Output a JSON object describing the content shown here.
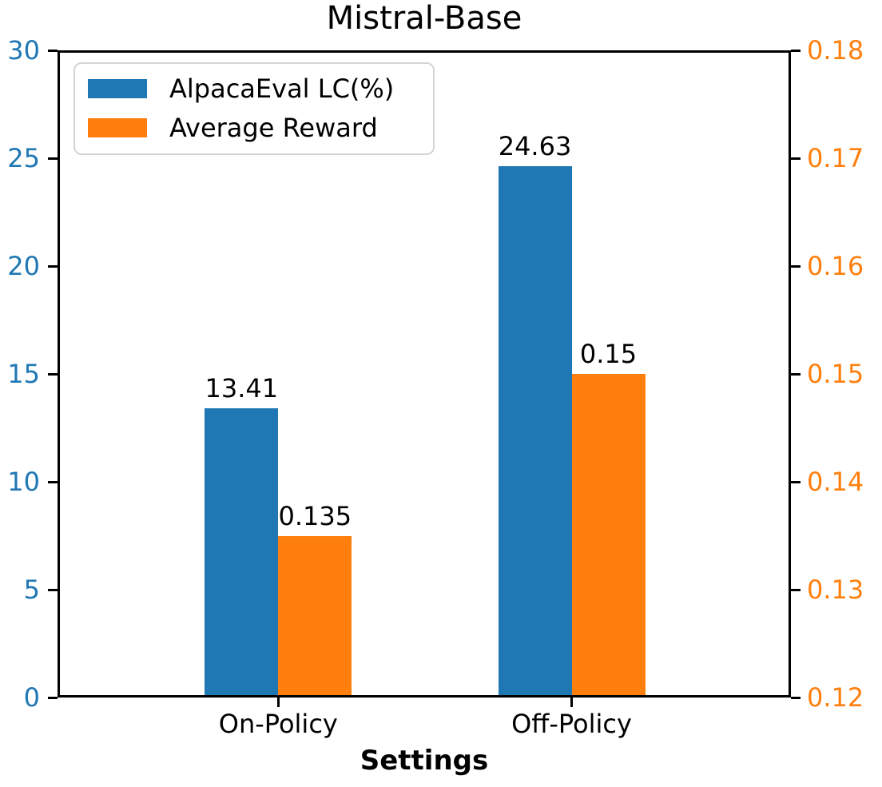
{
  "chart_data": {
    "type": "bar",
    "title": "Mistral-Base",
    "xlabel": "Settings",
    "categories": [
      "On-Policy",
      "Off-Policy"
    ],
    "series": [
      {
        "name": "AlpacaEval LC(%)",
        "axis": "left",
        "color": "#1f77b4",
        "values": [
          13.41,
          24.63
        ],
        "value_labels": [
          "13.41",
          "24.63"
        ]
      },
      {
        "name": "Average Reward",
        "axis": "right",
        "color": "#ff7f0e",
        "values": [
          0.135,
          0.15
        ],
        "value_labels": [
          "0.135",
          "0.15"
        ]
      }
    ],
    "left_axis": {
      "min": 0,
      "max": 30,
      "ticks": [
        "0",
        "5",
        "10",
        "15",
        "20",
        "25",
        "30"
      ],
      "color": "#1f77b4"
    },
    "right_axis": {
      "min": 0.12,
      "max": 0.18,
      "ticks": [
        "0.12",
        "0.13",
        "0.14",
        "0.15",
        "0.16",
        "0.17",
        "0.18"
      ],
      "color": "#ff7f0e"
    },
    "legend": {
      "position": "upper-left",
      "entries": [
        {
          "label": "AlpacaEval LC(%)",
          "color": "#1f77b4"
        },
        {
          "label": "Average Reward",
          "color": "#ff7f0e"
        }
      ]
    },
    "grid": false,
    "spine_color": "#000000"
  }
}
